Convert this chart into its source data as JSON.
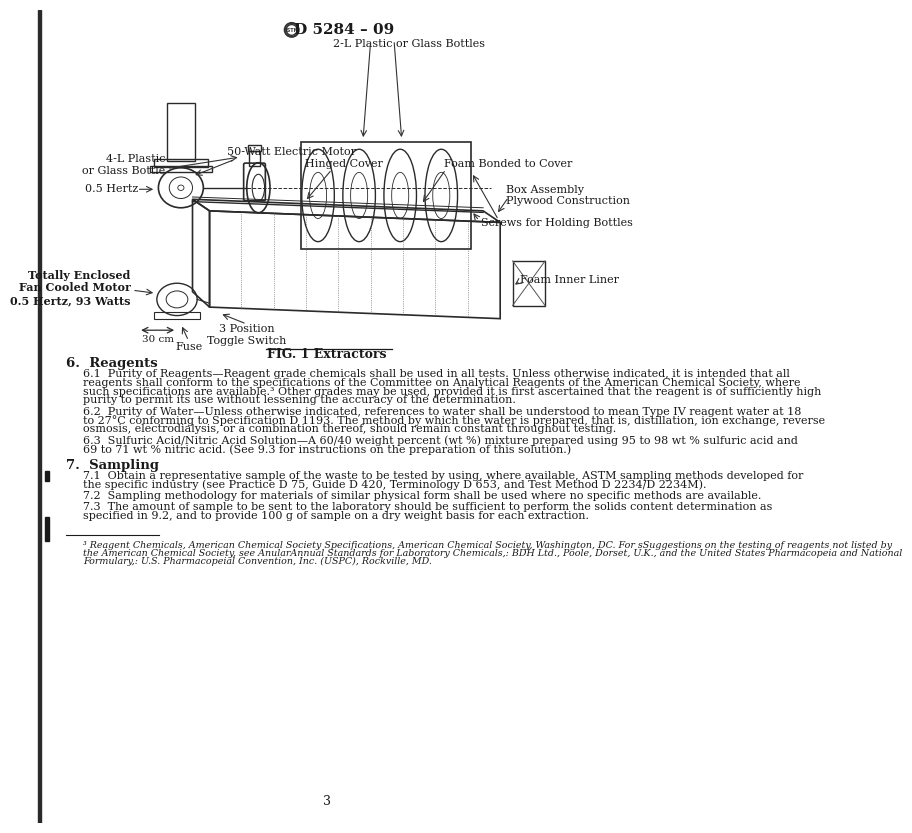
{
  "page_bg": "#ffffff",
  "text_color": "#1a1a1a",
  "header_text": "D 5284 – 09",
  "page_number": "3",
  "fig_caption": "FIG. 1 Extractors",
  "left_bar_color": "#2a2a2a",
  "section6_title": "6.  Reagents",
  "section7_title": "7.  Sampling",
  "diagram1_labels": {
    "top": "2-L Plastic or Glass Bottles",
    "motor": "50-Watt Electric Motor",
    "hertz": "0.5 Hertz",
    "screws": "Screws for Holding Bottles"
  },
  "diagram2_labels": {
    "bottle": "4-L Plastic\nor Glass Bottle",
    "hinged": "Hinged Cover",
    "foam_cover": "Foam Bonded to Cover",
    "box": "Box Assembly\nPlywood Construction",
    "motor": "Totally Enclosed\nFan Cooled Motor\n0.5 Hertz, 93 Watts",
    "foam_liner": "Foam Inner Liner",
    "toggle": "3 Position\nToggle Switch",
    "fuse": "Fuse",
    "scale": "30 cm"
  },
  "lines_61": [
    "6.1  Purity of Reagents—Reagent grade chemicals shall be used in all tests. Unless otherwise indicated, it is intended that all",
    "reagents shall conform to the specifications of the Committee on Analytical Reagents of the American Chemical Society, where",
    "such specifications are available.³ Other grades may be used, provided it is first ascertained that the reagent is of sufficiently high",
    "purity to permit its use without lessening the accuracy of the determination."
  ],
  "lines_62": [
    "6.2  Purity of Water—Unless otherwise indicated, references to water shall be understood to mean Type IV reagent water at 18",
    "to 27°C conforming to Specification D 1193. The method by which the water is prepared, that is, distillation, ion exchange, reverse",
    "osmosis, electrodialysis, or a combination thereof, should remain constant throughout testing."
  ],
  "lines_63": [
    "6.3  Sulfuric Acid/Nitric Acid Solution—A 60/40 weight percent (wt %) mixture prepared using 95 to 98 wt % sulfuric acid and",
    "69 to 71 wt % nitric acid. (See 9.3 for instructions on the preparation of this solution.)"
  ],
  "lines_71": [
    "7.1  Obtain a representative sample of the waste to be tested by using, where available, ASTM sampling methods developed for",
    "the specific industry (see Practice D 75, Guide D 420, Terminology D 653, and Test Method D 2234/D 2234M)."
  ],
  "line_72": "7.2  Sampling methodology for materials of similar physical form shall be used where no specific methods are available.",
  "lines_73": [
    "7.3  The amount of sample to be sent to the laboratory should be sufficient to perform the solids content determination as",
    "specified in 9.2, and to provide 100 g of sample on a dry weight basis for each extraction."
  ],
  "fn_lines": [
    "³ Reagent Chemicals, American Chemical Society Specifications, American Chemical Society, Washington, DC. For sSuggestions on the testing of reagents not listed by",
    "the American Chemical Society, see AnularAnnual Standards for Laboratory Chemicals,: BDH Ltd., Poole, Dorset, U.K., and the United States Pharmacopeia and National",
    "Formulary,: U.S. Pharmacopeial Convention, Inc. (USPC), Rockville, MD."
  ]
}
